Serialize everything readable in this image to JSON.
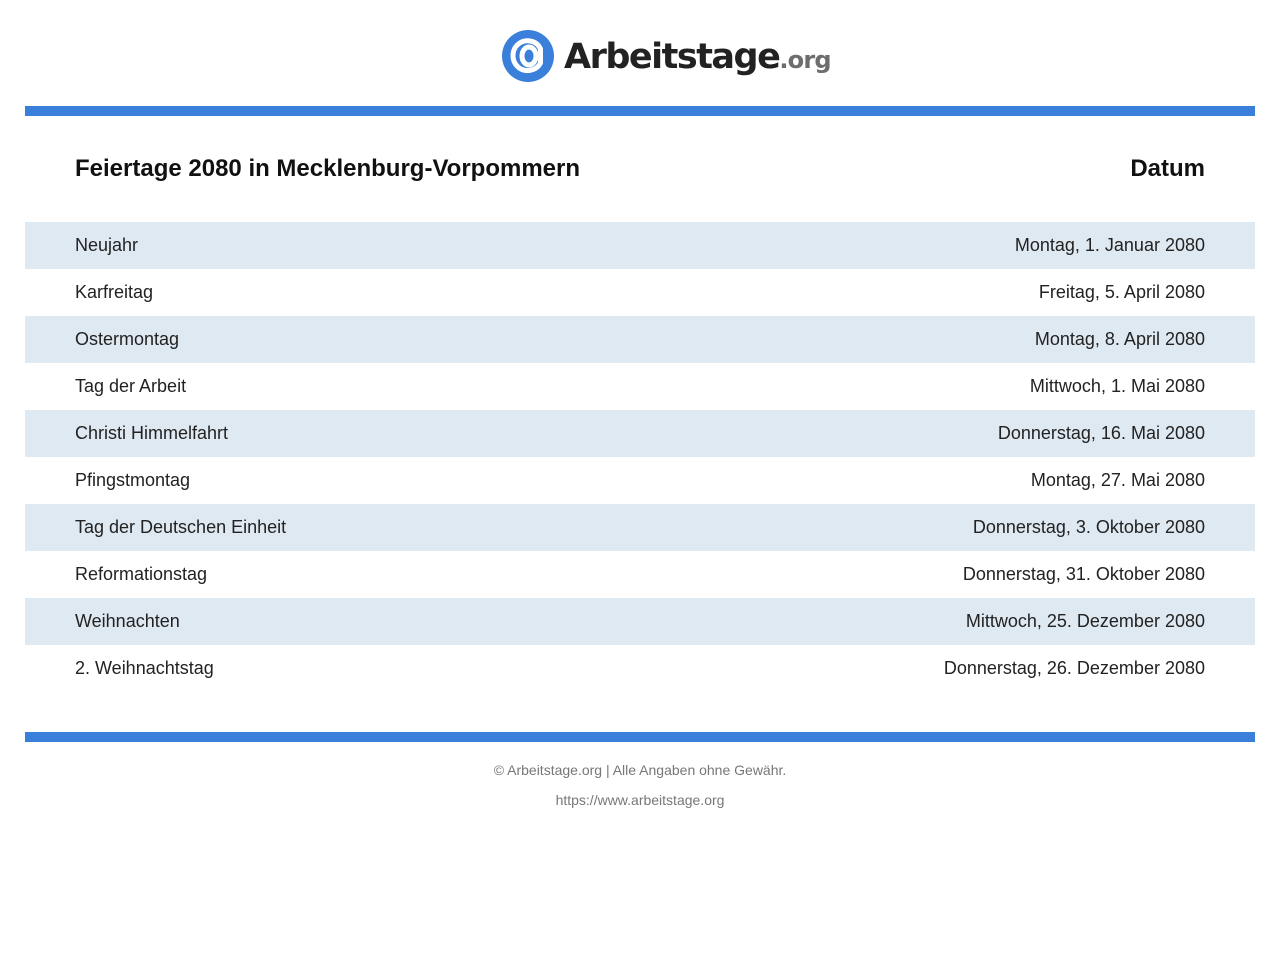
{
  "brand": {
    "name_main": "Arbeitstage",
    "name_tld": ".org",
    "logo_icon": "at-sign-icon",
    "accent_color": "#3a7fd9"
  },
  "table": {
    "title": "Feiertage 2080 in Mecklenburg-Vorpommern",
    "date_header": "Datum",
    "row_shade_color": "#dfe9f1",
    "rows": [
      {
        "name": "Neujahr",
        "date": "Montag, 1. Januar 2080"
      },
      {
        "name": "Karfreitag",
        "date": "Freitag, 5. April 2080"
      },
      {
        "name": "Ostermontag",
        "date": "Montag, 8. April 2080"
      },
      {
        "name": "Tag der Arbeit",
        "date": "Mittwoch, 1. Mai 2080"
      },
      {
        "name": "Christi Himmelfahrt",
        "date": "Donnerstag, 16. Mai 2080"
      },
      {
        "name": "Pfingstmontag",
        "date": "Montag, 27. Mai 2080"
      },
      {
        "name": "Tag der Deutschen Einheit",
        "date": "Donnerstag, 3. Oktober 2080"
      },
      {
        "name": "Reformationstag",
        "date": "Donnerstag, 31. Oktober 2080"
      },
      {
        "name": "Weihnachten",
        "date": "Mittwoch, 25. Dezember 2080"
      },
      {
        "name": "2. Weihnachtstag",
        "date": "Donnerstag, 26. Dezember 2080"
      }
    ]
  },
  "footer": {
    "copyright": "© Arbeitstage.org | Alle Angaben ohne Gewähr.",
    "url": "https://www.arbeitstage.org"
  }
}
